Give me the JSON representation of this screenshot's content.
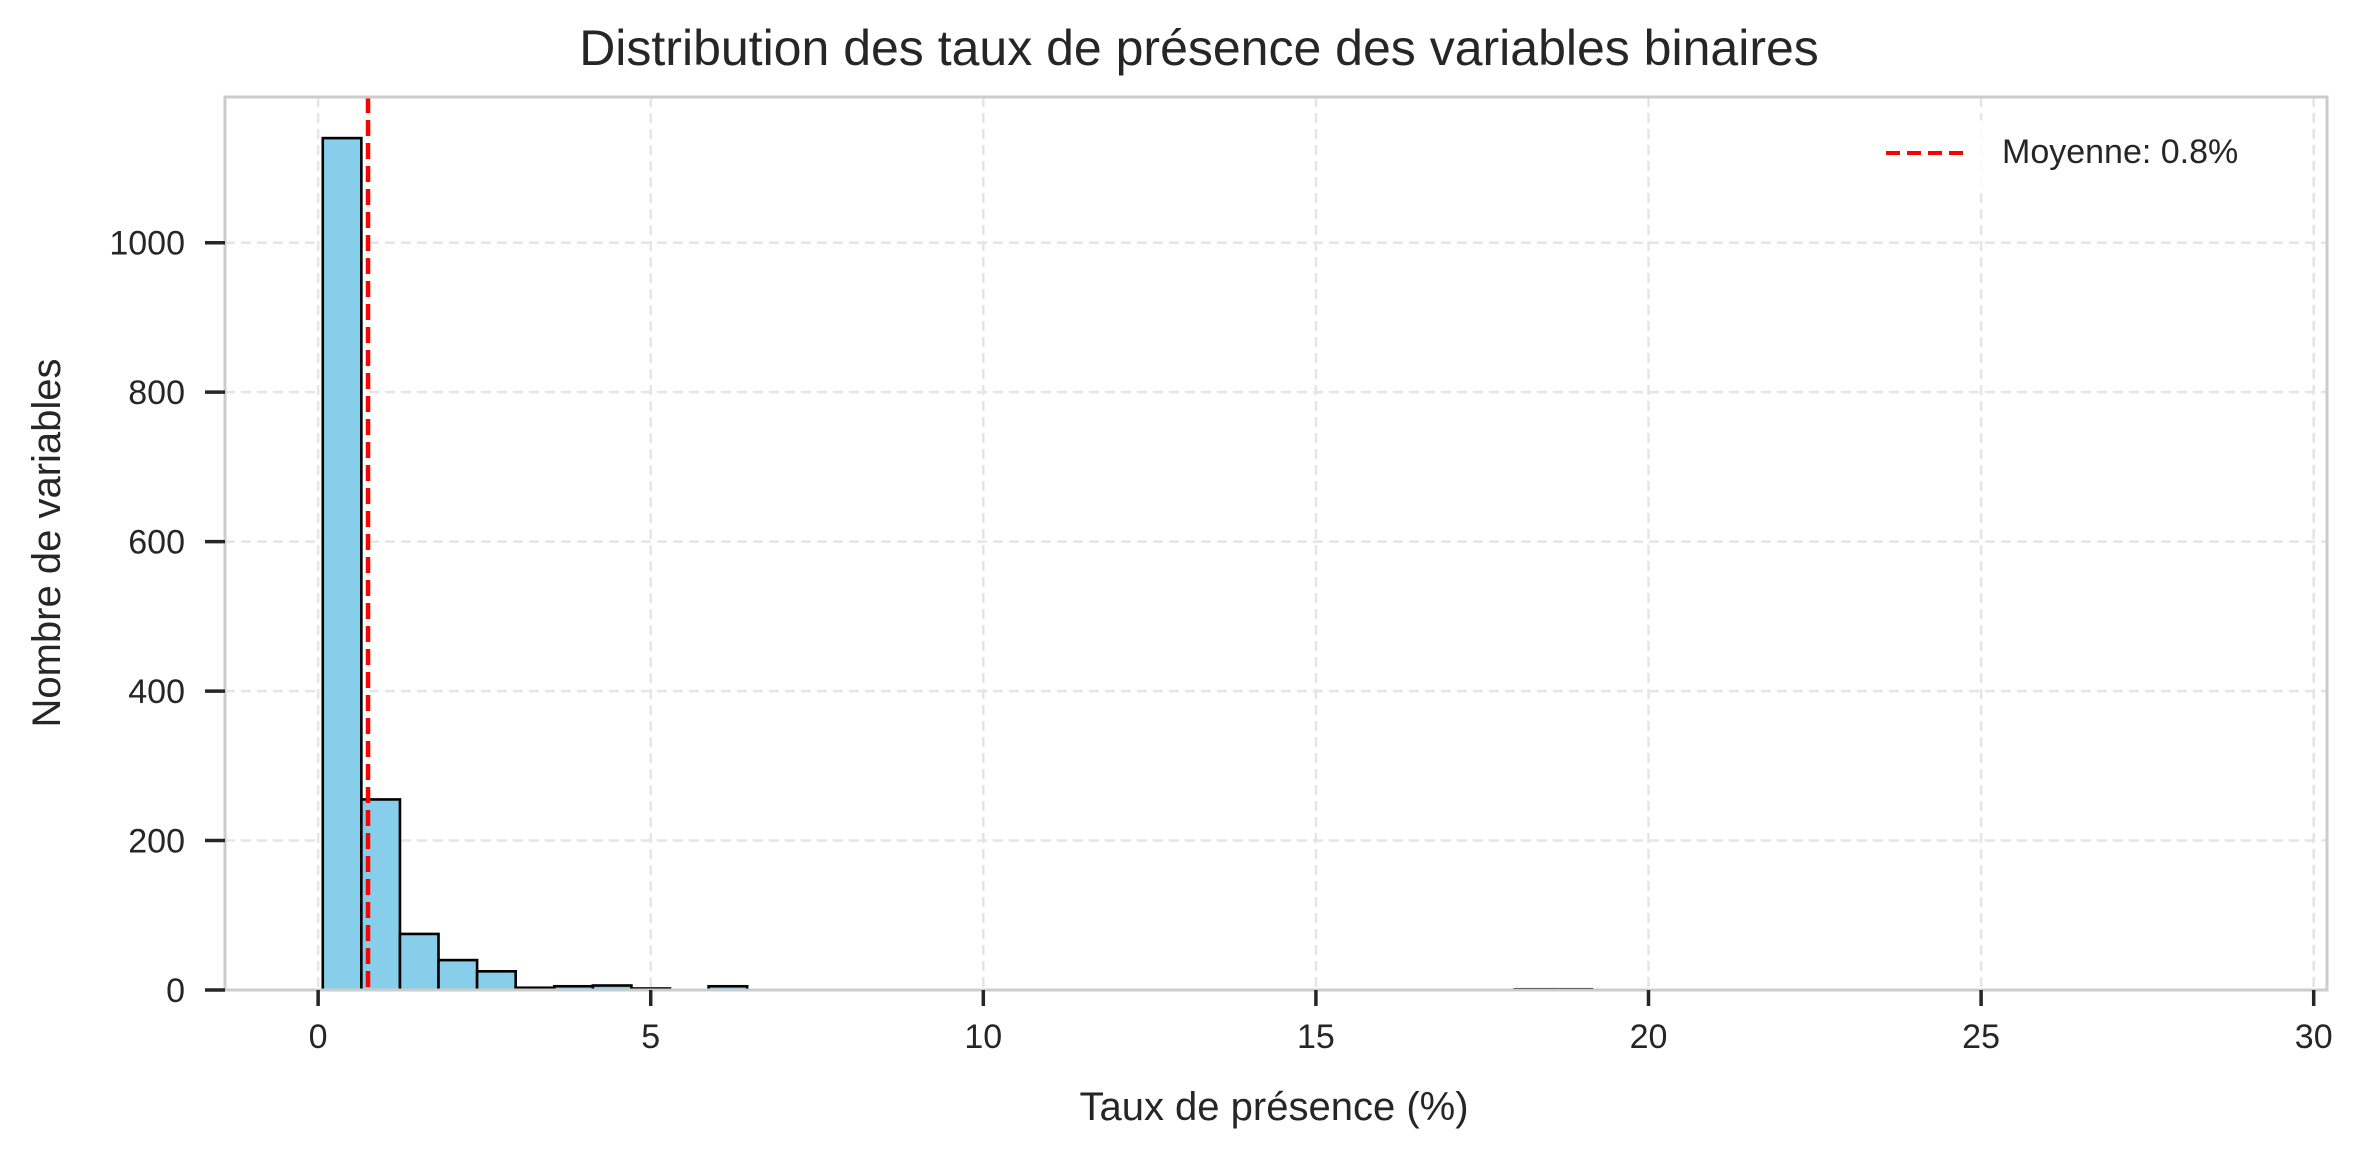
{
  "chart_data": {
    "type": "bar",
    "title": "Distribution des taux de présence des variables binaires",
    "xlabel": "Taux de présence (%)",
    "ylabel": "Nombre de variables",
    "xlim": [
      -1.4,
      30.2
    ],
    "ylim": [
      0,
      1195
    ],
    "xticks": [
      0,
      5,
      10,
      15,
      20,
      25,
      30
    ],
    "yticks": [
      0,
      200,
      400,
      600,
      800,
      1000
    ],
    "grid": true,
    "legend_position": "top-right",
    "bin_width": 0.58,
    "bins": [
      {
        "x0": 0.07,
        "count": 1140
      },
      {
        "x0": 0.65,
        "count": 255
      },
      {
        "x0": 1.23,
        "count": 75
      },
      {
        "x0": 1.81,
        "count": 40
      },
      {
        "x0": 2.39,
        "count": 25
      },
      {
        "x0": 2.97,
        "count": 3
      },
      {
        "x0": 3.55,
        "count": 5
      },
      {
        "x0": 4.13,
        "count": 6
      },
      {
        "x0": 4.71,
        "count": 2
      },
      {
        "x0": 5.29,
        "count": 0
      },
      {
        "x0": 5.87,
        "count": 5
      },
      {
        "x0": 17.99,
        "count": 1
      },
      {
        "x0": 18.57,
        "count": 1
      }
    ],
    "bar_color": "#87ceeb",
    "bar_edge_color": "#000000",
    "mean_line": {
      "value": 0.75,
      "label": "Moyenne: 0.8%",
      "color": "#ff0000"
    }
  }
}
